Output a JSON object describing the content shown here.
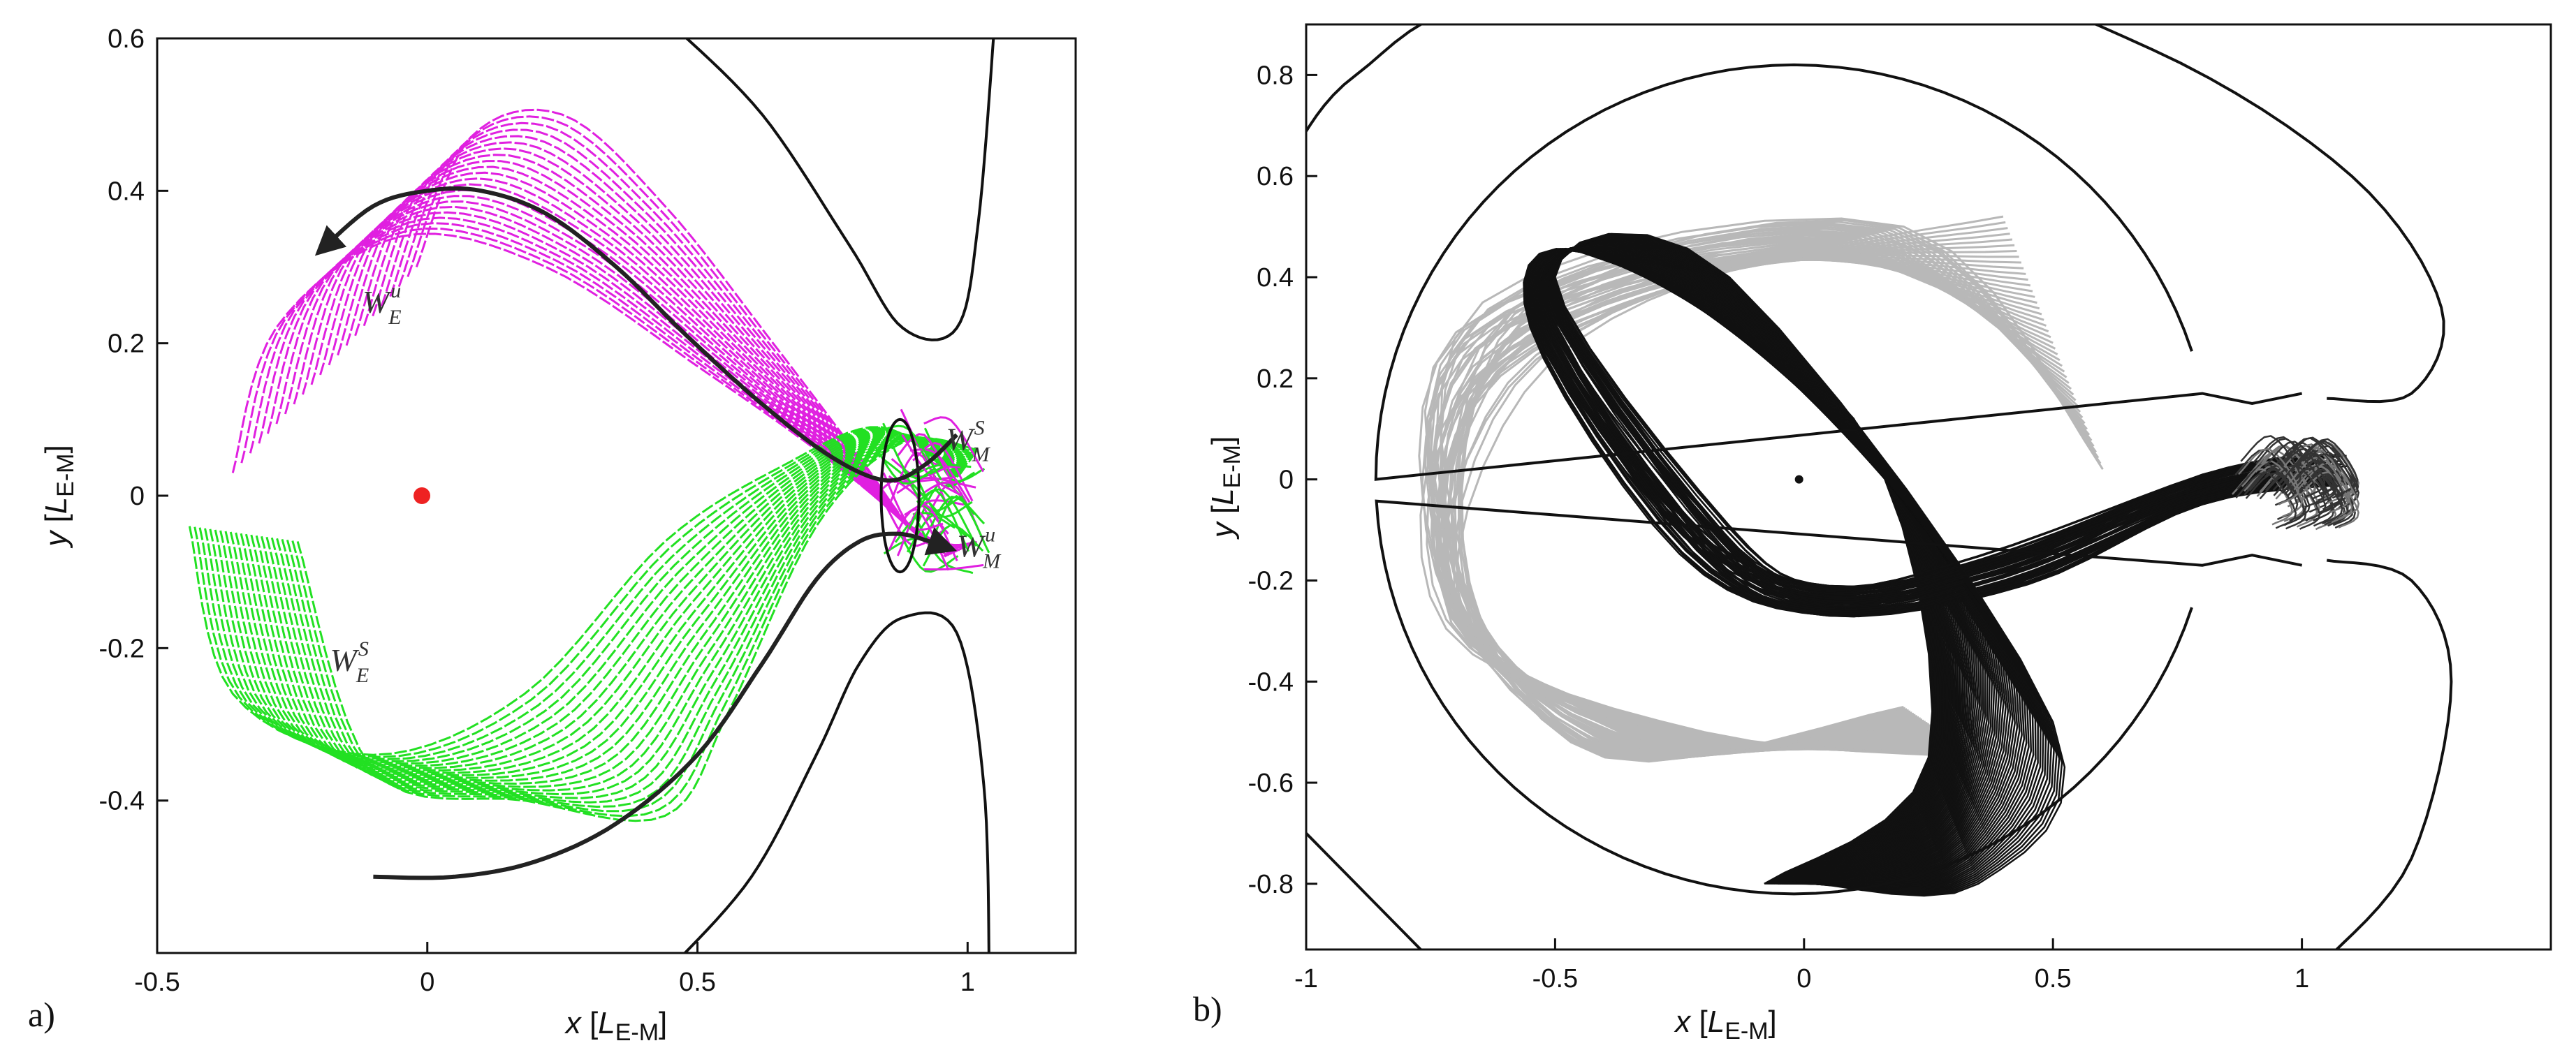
{
  "chart_data": [
    {
      "type": "line",
      "panel_label": "a)",
      "xlabel": "x [LE-M]",
      "ylabel": "y [LE-M]",
      "xlabel_parts": {
        "var": "x",
        "unit": "L",
        "unit_sub": "E-M"
      },
      "ylabel_parts": {
        "var": "y",
        "unit": "L",
        "unit_sub": "E-M"
      },
      "xlim": [
        -0.5,
        1.2
      ],
      "ylim": [
        -0.6,
        0.6
      ],
      "xticks": [
        -0.5,
        0,
        0.5,
        1
      ],
      "yticks": [
        -0.4,
        -0.2,
        0,
        0.2,
        0.4,
        0.6
      ],
      "xtick_labels": [
        "-0.5",
        "0",
        "0.5",
        "1"
      ],
      "ytick_labels": [
        "-0.4",
        "-0.2",
        "0",
        "0.2",
        "0.4",
        "0.6"
      ],
      "grid": false,
      "colors": {
        "unstable_manifold": "#e020e0",
        "stable_manifold": "#22e022",
        "trajectory": "#222222",
        "zero_velocity": "#111111",
        "earth": "#ee2222"
      },
      "annotations": [
        {
          "text": "W",
          "sub": "E",
          "sup": "u",
          "x": -0.12,
          "y": 0.24
        },
        {
          "text": "W",
          "sub": "E",
          "sup": "S",
          "x": -0.18,
          "y": -0.23
        },
        {
          "text": "W",
          "sub": "M",
          "sup": "S",
          "x": 0.96,
          "y": 0.06
        },
        {
          "text": "W",
          "sub": "M",
          "sup": "u",
          "x": 0.98,
          "y": -0.08
        }
      ],
      "primary": {
        "name": "Earth",
        "x": -0.01,
        "y": 0.0
      },
      "series": [
        {
          "name": "transfer trajectory (upper)",
          "x": [
            0.98,
            0.92,
            0.85,
            0.75,
            0.62,
            0.48,
            0.35,
            0.22,
            0.1,
            0.0,
            -0.1,
            -0.2
          ],
          "y": [
            0.08,
            0.04,
            0.02,
            0.05,
            0.12,
            0.21,
            0.3,
            0.37,
            0.4,
            0.4,
            0.38,
            0.32
          ]
        },
        {
          "name": "transfer trajectory (lower)",
          "x": [
            -0.1,
            0.05,
            0.2,
            0.35,
            0.5,
            0.62,
            0.72,
            0.8,
            0.87,
            0.93,
            0.97
          ],
          "y": [
            -0.5,
            -0.5,
            -0.48,
            -0.43,
            -0.34,
            -0.22,
            -0.11,
            -0.06,
            -0.05,
            -0.06,
            -0.07
          ]
        }
      ]
    },
    {
      "type": "line",
      "panel_label": "b)",
      "xlabel": "x [LE-M]",
      "ylabel": "y [LE-M]",
      "xlabel_parts": {
        "var": "x",
        "unit": "L",
        "unit_sub": "E-M"
      },
      "ylabel_parts": {
        "var": "y",
        "unit": "L",
        "unit_sub": "E-M"
      },
      "xlim": [
        -1.0,
        1.5
      ],
      "ylim": [
        -0.93,
        0.9
      ],
      "xticks": [
        -1,
        -0.5,
        0,
        0.5,
        1
      ],
      "yticks": [
        -0.8,
        -0.6,
        -0.4,
        -0.2,
        0,
        0.2,
        0.4,
        0.6,
        0.8
      ],
      "xtick_labels": [
        "-1",
        "-0.5",
        "0",
        "0.5",
        "1"
      ],
      "ytick_labels": [
        "-0.8",
        "-0.6",
        "-0.4",
        "-0.2",
        "0",
        "0.2",
        "0.4",
        "0.6",
        "0.8"
      ],
      "grid": false,
      "colors": {
        "trajectories": "#111111",
        "secondary_trajectories": "#b8b8b8",
        "zero_velocity": "#111111",
        "earth": "#111111"
      },
      "primary": {
        "name": "Earth",
        "x": -0.01,
        "y": 0.0
      }
    }
  ]
}
